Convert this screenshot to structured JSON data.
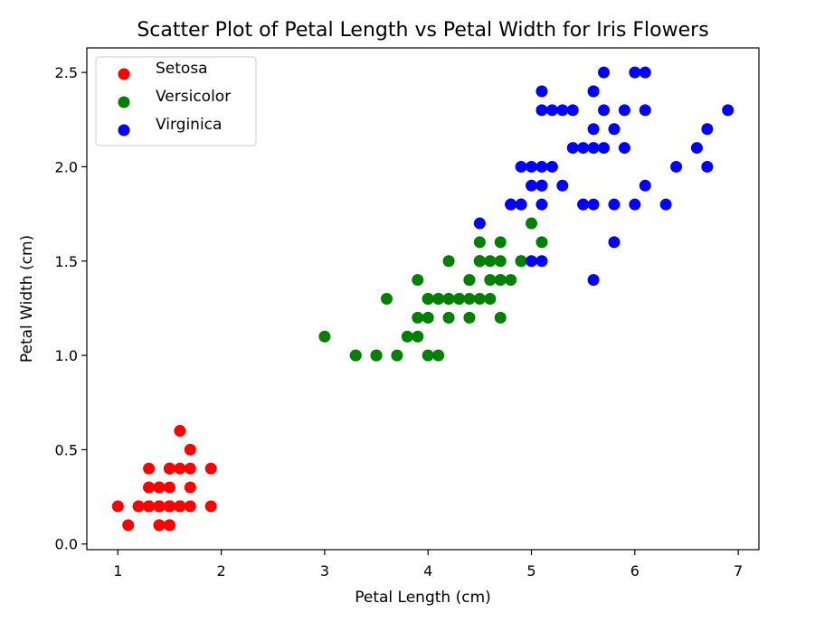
{
  "chart_data": {
    "type": "scatter",
    "title": "Scatter Plot of Petal Length vs Petal Width for Iris Flowers",
    "xlabel": "Petal Length (cm)",
    "ylabel": "Petal Width (cm)",
    "xlim": [
      0.7,
      7.2
    ],
    "ylim": [
      -0.03,
      2.63
    ],
    "xticks": [
      1,
      2,
      3,
      4,
      5,
      6,
      7
    ],
    "xtick_labels": [
      "1",
      "2",
      "3",
      "4",
      "5",
      "6",
      "7"
    ],
    "yticks": [
      0.0,
      0.5,
      1.0,
      1.5,
      2.0,
      2.5
    ],
    "ytick_labels": [
      "0.0",
      "0.5",
      "1.0",
      "1.5",
      "2.0",
      "2.5"
    ],
    "grid": false,
    "legend_position": "top-left",
    "series": [
      {
        "name": "Setosa",
        "color": "#ff0000",
        "points": [
          [
            1.4,
            0.2
          ],
          [
            1.4,
            0.2
          ],
          [
            1.3,
            0.2
          ],
          [
            1.5,
            0.2
          ],
          [
            1.4,
            0.2
          ],
          [
            1.7,
            0.4
          ],
          [
            1.4,
            0.3
          ],
          [
            1.5,
            0.2
          ],
          [
            1.4,
            0.2
          ],
          [
            1.5,
            0.1
          ],
          [
            1.5,
            0.2
          ],
          [
            1.6,
            0.2
          ],
          [
            1.4,
            0.1
          ],
          [
            1.1,
            0.1
          ],
          [
            1.2,
            0.2
          ],
          [
            1.5,
            0.4
          ],
          [
            1.3,
            0.4
          ],
          [
            1.4,
            0.3
          ],
          [
            1.7,
            0.3
          ],
          [
            1.5,
            0.3
          ],
          [
            1.7,
            0.2
          ],
          [
            1.5,
            0.4
          ],
          [
            1.0,
            0.2
          ],
          [
            1.7,
            0.5
          ],
          [
            1.9,
            0.2
          ],
          [
            1.6,
            0.2
          ],
          [
            1.6,
            0.4
          ],
          [
            1.5,
            0.2
          ],
          [
            1.4,
            0.2
          ],
          [
            1.6,
            0.2
          ],
          [
            1.6,
            0.2
          ],
          [
            1.5,
            0.4
          ],
          [
            1.5,
            0.1
          ],
          [
            1.4,
            0.2
          ],
          [
            1.5,
            0.2
          ],
          [
            1.2,
            0.2
          ],
          [
            1.3,
            0.2
          ],
          [
            1.4,
            0.1
          ],
          [
            1.3,
            0.2
          ],
          [
            1.5,
            0.2
          ],
          [
            1.3,
            0.3
          ],
          [
            1.3,
            0.3
          ],
          [
            1.3,
            0.2
          ],
          [
            1.6,
            0.6
          ],
          [
            1.9,
            0.4
          ],
          [
            1.4,
            0.3
          ],
          [
            1.6,
            0.2
          ],
          [
            1.4,
            0.2
          ],
          [
            1.5,
            0.2
          ],
          [
            1.4,
            0.2
          ]
        ]
      },
      {
        "name": "Versicolor",
        "color": "#008000",
        "points": [
          [
            4.7,
            1.4
          ],
          [
            4.5,
            1.5
          ],
          [
            4.9,
            1.5
          ],
          [
            4.0,
            1.3
          ],
          [
            4.6,
            1.5
          ],
          [
            4.5,
            1.3
          ],
          [
            4.7,
            1.6
          ],
          [
            3.3,
            1.0
          ],
          [
            4.6,
            1.3
          ],
          [
            3.9,
            1.4
          ],
          [
            3.5,
            1.0
          ],
          [
            4.2,
            1.5
          ],
          [
            4.0,
            1.0
          ],
          [
            4.7,
            1.4
          ],
          [
            3.6,
            1.3
          ],
          [
            4.4,
            1.4
          ],
          [
            4.5,
            1.5
          ],
          [
            4.1,
            1.0
          ],
          [
            4.5,
            1.5
          ],
          [
            3.9,
            1.1
          ],
          [
            4.8,
            1.8
          ],
          [
            4.0,
            1.3
          ],
          [
            4.9,
            1.5
          ],
          [
            4.7,
            1.2
          ],
          [
            4.3,
            1.3
          ],
          [
            4.4,
            1.4
          ],
          [
            4.8,
            1.4
          ],
          [
            5.0,
            1.7
          ],
          [
            4.5,
            1.5
          ],
          [
            3.5,
            1.0
          ],
          [
            3.8,
            1.1
          ],
          [
            3.7,
            1.0
          ],
          [
            3.9,
            1.2
          ],
          [
            5.1,
            1.6
          ],
          [
            4.5,
            1.5
          ],
          [
            4.5,
            1.6
          ],
          [
            4.7,
            1.5
          ],
          [
            4.4,
            1.3
          ],
          [
            4.1,
            1.3
          ],
          [
            4.0,
            1.3
          ],
          [
            4.4,
            1.2
          ],
          [
            4.6,
            1.4
          ],
          [
            4.0,
            1.2
          ],
          [
            3.3,
            1.0
          ],
          [
            4.2,
            1.3
          ],
          [
            4.2,
            1.2
          ],
          [
            4.2,
            1.3
          ],
          [
            4.3,
            1.3
          ],
          [
            3.0,
            1.1
          ],
          [
            4.1,
            1.3
          ]
        ]
      },
      {
        "name": "Virginica",
        "color": "#0000ff",
        "points": [
          [
            6.0,
            2.5
          ],
          [
            5.1,
            1.9
          ],
          [
            5.9,
            2.1
          ],
          [
            5.6,
            1.8
          ],
          [
            5.8,
            2.2
          ],
          [
            6.6,
            2.1
          ],
          [
            4.5,
            1.7
          ],
          [
            6.3,
            1.8
          ],
          [
            5.8,
            1.8
          ],
          [
            6.1,
            2.5
          ],
          [
            5.1,
            2.0
          ],
          [
            5.3,
            1.9
          ],
          [
            5.5,
            2.1
          ],
          [
            5.0,
            2.0
          ],
          [
            5.1,
            2.4
          ],
          [
            5.3,
            2.3
          ],
          [
            5.5,
            1.8
          ],
          [
            6.7,
            2.2
          ],
          [
            6.9,
            2.3
          ],
          [
            5.0,
            1.5
          ],
          [
            5.7,
            2.3
          ],
          [
            4.9,
            2.0
          ],
          [
            6.7,
            2.0
          ],
          [
            4.9,
            1.8
          ],
          [
            5.7,
            2.1
          ],
          [
            6.0,
            1.8
          ],
          [
            4.8,
            1.8
          ],
          [
            4.9,
            1.8
          ],
          [
            5.6,
            2.1
          ],
          [
            5.8,
            1.6
          ],
          [
            6.1,
            1.9
          ],
          [
            6.4,
            2.0
          ],
          [
            5.6,
            2.2
          ],
          [
            5.1,
            1.5
          ],
          [
            5.6,
            1.4
          ],
          [
            6.1,
            2.3
          ],
          [
            5.6,
            2.4
          ],
          [
            5.5,
            1.8
          ],
          [
            4.8,
            1.8
          ],
          [
            5.4,
            2.1
          ],
          [
            5.6,
            2.4
          ],
          [
            5.1,
            2.3
          ],
          [
            5.1,
            1.9
          ],
          [
            5.9,
            2.3
          ],
          [
            5.7,
            2.5
          ],
          [
            5.2,
            2.3
          ],
          [
            5.0,
            1.9
          ],
          [
            5.2,
            2.0
          ],
          [
            5.4,
            2.3
          ],
          [
            5.1,
            1.8
          ]
        ]
      }
    ]
  }
}
